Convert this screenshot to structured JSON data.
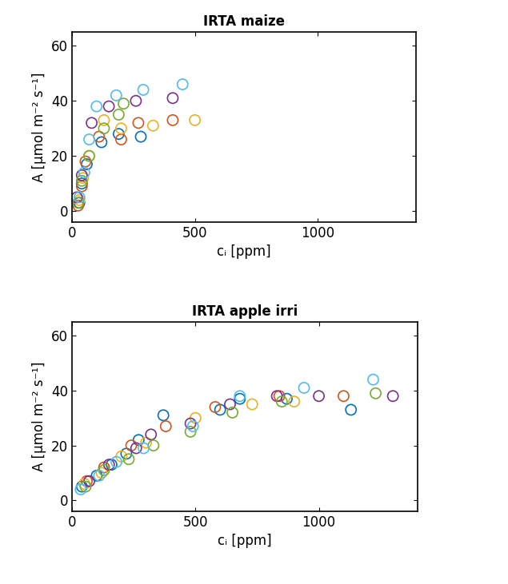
{
  "chart_data": [
    {
      "type": "scatter",
      "title": "IRTA maize",
      "x_label": "cᵢ [ppm]",
      "y_label": "A [μmol m⁻² s⁻¹]",
      "xlim": [
        0,
        1400
      ],
      "ylim": [
        -4,
        65
      ],
      "xticks": [
        0,
        500,
        1000
      ],
      "yticks": [
        0,
        20,
        40,
        60
      ],
      "marker": "o",
      "series": [
        {
          "color": "#0072BD",
          "x": [
            30,
            40,
            60,
            120,
            190,
            280
          ],
          "values": [
            3,
            10,
            17,
            25,
            28,
            27
          ]
        },
        {
          "color": "#D95319",
          "x": [
            25,
            40,
            55,
            110,
            200,
            270,
            410
          ],
          "values": [
            2,
            9,
            18,
            27,
            26,
            32,
            33
          ]
        },
        {
          "color": "#EDB120",
          "x": [
            30,
            45,
            70,
            130,
            200,
            330,
            500
          ],
          "values": [
            4,
            12,
            20,
            33,
            30,
            31,
            33
          ]
        },
        {
          "color": "#7E2F8E",
          "x": [
            20,
            40,
            80,
            150,
            260,
            410
          ],
          "values": [
            5,
            13,
            32,
            38,
            40,
            41
          ]
        },
        {
          "color": "#77AC30",
          "x": [
            25,
            40,
            70,
            130,
            190,
            210
          ],
          "values": [
            3,
            11,
            20,
            30,
            35,
            39
          ]
        },
        {
          "color": "#4DBEEE",
          "x": [
            30,
            50,
            70,
            100,
            180,
            290,
            450
          ],
          "values": [
            5,
            14,
            26,
            38,
            42,
            44,
            46
          ]
        }
      ]
    },
    {
      "type": "scatter",
      "title": "IRTA apple irri",
      "x_label": "cᵢ [ppm]",
      "y_label": "A [μmol m⁻² s⁻¹]",
      "xlim": [
        0,
        1400
      ],
      "ylim": [
        -4,
        65
      ],
      "xticks": [
        0,
        500,
        1000
      ],
      "yticks": [
        0,
        20,
        40,
        60
      ],
      "marker": "o",
      "series": [
        {
          "color": "#0072BD",
          "x": [
            40,
            100,
            160,
            220,
            270,
            370,
            600,
            680,
            870,
            1130
          ],
          "values": [
            5,
            9,
            13,
            17,
            22,
            31,
            33,
            37,
            37,
            33
          ]
        },
        {
          "color": "#D95319",
          "x": [
            60,
            130,
            240,
            380,
            580,
            840,
            1100
          ],
          "values": [
            7,
            12,
            20,
            27,
            34,
            38,
            38
          ]
        },
        {
          "color": "#EDB120",
          "x": [
            50,
            120,
            200,
            300,
            500,
            730,
            900
          ],
          "values": [
            6,
            10,
            16,
            21,
            30,
            35,
            36
          ]
        },
        {
          "color": "#7E2F8E",
          "x": [
            70,
            150,
            260,
            320,
            480,
            640,
            830,
            1000,
            1300
          ],
          "values": [
            7,
            13,
            19,
            24,
            28,
            35,
            38,
            38,
            38
          ]
        },
        {
          "color": "#77AC30",
          "x": [
            55,
            130,
            230,
            330,
            480,
            650,
            850,
            1230
          ],
          "values": [
            5,
            11,
            15,
            20,
            25,
            32,
            36,
            39
          ]
        },
        {
          "color": "#4DBEEE",
          "x": [
            35,
            110,
            180,
            290,
            490,
            680,
            940,
            1220
          ],
          "values": [
            4,
            9,
            14,
            19,
            27,
            38,
            41,
            44
          ]
        }
      ]
    }
  ]
}
